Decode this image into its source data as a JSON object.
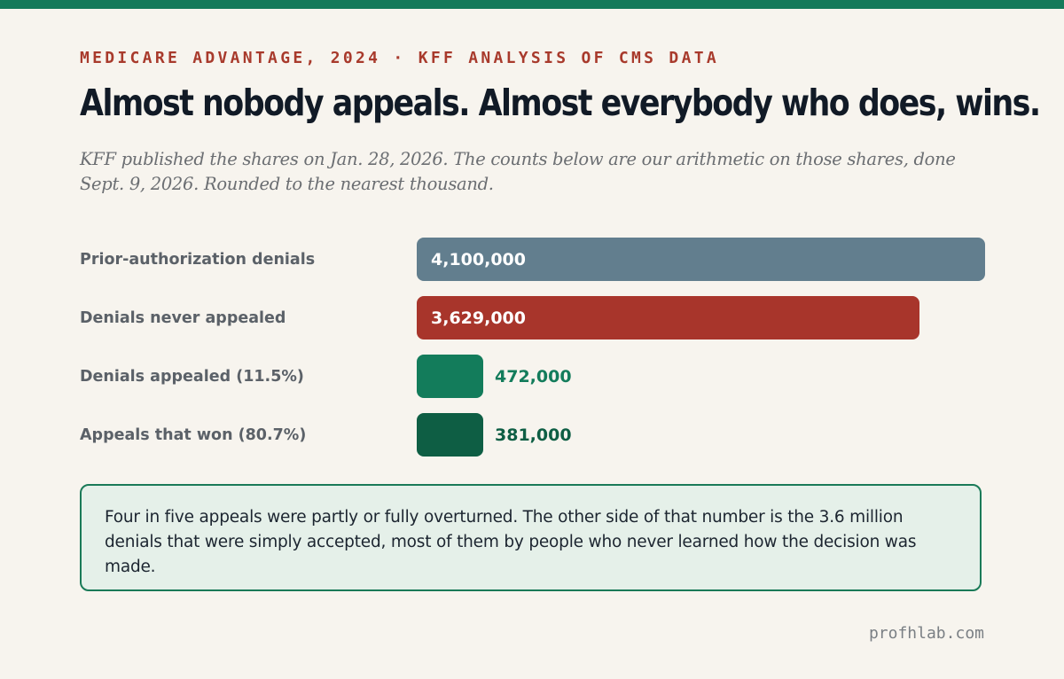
{
  "header": {
    "kicker": "MEDICARE ADVANTAGE, 2024 · KFF ANALYSIS OF CMS DATA",
    "headline": "Almost nobody appeals. Almost everybody who does, wins.",
    "dek": "KFF published the shares on Jan. 28, 2026. The counts below are our arithmetic on those shares, done Sept. 9, 2026. Rounded to the nearest thousand."
  },
  "colors": {
    "top_bar": "#157a5a",
    "kicker": "#a83a2c",
    "bar_total": "#627e8e",
    "bar_never_appealed": "#a8352b",
    "bar_appealed": "#137c5b",
    "bar_won": "#0e5e44",
    "value_inside": "#ffffff"
  },
  "chart_data": {
    "type": "bar",
    "orientation": "horizontal",
    "categories": [
      "Prior-authorization denials",
      "Denials never appealed",
      "Denials appealed (11.5%)",
      "Appeals that won (80.7%)"
    ],
    "values": [
      4100000,
      3629000,
      472000,
      381000
    ],
    "value_labels": [
      "4,100,000",
      "3,629,000",
      "472,000",
      "381,000"
    ],
    "xlim": [
      0,
      4100000
    ],
    "grid": false
  },
  "note": {
    "text": "Four in five appeals were partly or fully overturned. The other side of that number is the 3.6 million denials that were simply accepted, most of them by people who never learned how the decision was made."
  },
  "footer": {
    "credit": "profhlab.com"
  }
}
